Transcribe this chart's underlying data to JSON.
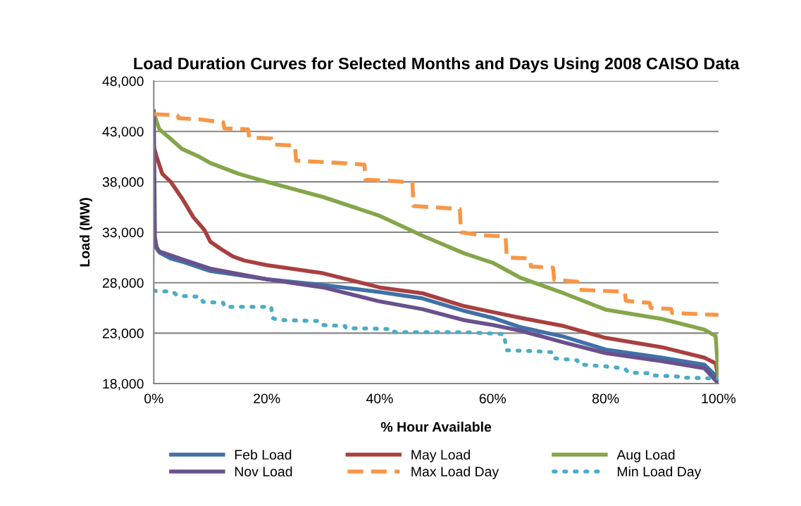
{
  "chart_data": {
    "type": "line",
    "title": "Load Duration Curves for Selected Months and Days Using 2008 CAISO Data",
    "xlabel": "% Hour Available",
    "ylabel": "Load (MW)",
    "xlim": [
      0,
      100
    ],
    "ylim": [
      18000,
      48000
    ],
    "xticks": [
      {
        "value": 0,
        "label": "0%"
      },
      {
        "value": 20,
        "label": "20%"
      },
      {
        "value": 40,
        "label": "40%"
      },
      {
        "value": 60,
        "label": "60%"
      },
      {
        "value": 80,
        "label": "80%"
      },
      {
        "value": 100,
        "label": "100%"
      }
    ],
    "yticks": [
      {
        "value": 18000,
        "label": "18,000"
      },
      {
        "value": 23000,
        "label": "23,000"
      },
      {
        "value": 28000,
        "label": "28,000"
      },
      {
        "value": 33000,
        "label": "33,000"
      },
      {
        "value": 38000,
        "label": "38,000"
      },
      {
        "value": 43000,
        "label": "43,000"
      },
      {
        "value": 48000,
        "label": "48,000"
      }
    ],
    "grid": "y",
    "legend": "bottom",
    "marker": "none",
    "series": [
      {
        "name": "Feb Load",
        "color": "#4070a8",
        "line_style": "solid",
        "x": [
          0,
          1,
          3,
          5,
          10,
          20,
          30,
          40,
          47.6,
          55,
          60,
          65,
          72.6,
          80,
          90,
          97.5,
          100
        ],
        "values": [
          31800,
          31000,
          30400,
          30090,
          29160,
          28350,
          27770,
          27070,
          26440,
          25200,
          24510,
          23580,
          22650,
          21370,
          20560,
          19860,
          18500
        ]
      },
      {
        "name": "May Load",
        "color": "#a84040",
        "line_style": "solid",
        "x": [
          0,
          0.5,
          1.5,
          3,
          5,
          7,
          9,
          10,
          12,
          14,
          16,
          20,
          30,
          40,
          47.6,
          55,
          60,
          65,
          72.6,
          80,
          90,
          97.5,
          99.5,
          100
        ],
        "values": [
          41500,
          40500,
          38800,
          38000,
          36370,
          34500,
          33200,
          32070,
          31300,
          30600,
          30200,
          29740,
          28930,
          27530,
          26950,
          25670,
          25090,
          24510,
          23700,
          22530,
          21600,
          20560,
          20000,
          18500
        ]
      },
      {
        "name": "Aug Load",
        "color": "#84a64a",
        "line_style": "solid",
        "x": [
          0,
          0.5,
          1,
          2.5,
          5,
          8,
          10,
          15,
          20,
          30,
          40,
          47.6,
          55,
          60,
          65,
          72.6,
          80,
          90,
          97.5,
          99.5,
          100
        ],
        "values": [
          44800,
          44000,
          43200,
          42500,
          41260,
          40500,
          39860,
          38800,
          38000,
          36490,
          34630,
          32650,
          30900,
          29980,
          28470,
          26950,
          25330,
          24400,
          23350,
          22700,
          18500
        ]
      },
      {
        "name": "Nov Load",
        "color": "#6a508c",
        "line_style": "solid",
        "x": [
          0,
          0.2,
          0.5,
          1,
          3,
          5,
          10,
          20,
          30,
          40,
          47.6,
          55,
          60,
          65,
          72.6,
          80,
          90,
          97.5,
          100
        ],
        "values": [
          45000,
          32500,
          31500,
          31100,
          30700,
          30330,
          29400,
          28350,
          27530,
          26140,
          25370,
          24280,
          23810,
          23230,
          22070,
          21020,
          20210,
          19510,
          18000
        ]
      },
      {
        "name": "Max Load Day",
        "color": "#f79646",
        "line_style": "dashed",
        "x": [
          0,
          4.2,
          4.4,
          8,
          12.3,
          12.5,
          16.7,
          16.9,
          20.8,
          21,
          25,
          25.2,
          32,
          37.3,
          37.5,
          42,
          45.8,
          46,
          54.2,
          54.4,
          58,
          62.3,
          62.5,
          66.6,
          66.8,
          70.7,
          70.9,
          75,
          75.2,
          83.4,
          83.6,
          87.8,
          88,
          91.6,
          91.8,
          100
        ],
        "values": [
          44700,
          44600,
          44300,
          44200,
          43900,
          43300,
          43200,
          42400,
          42300,
          41700,
          41600,
          40100,
          39900,
          39700,
          38200,
          38100,
          37900,
          35600,
          35300,
          33000,
          32700,
          32600,
          30500,
          30400,
          29600,
          29500,
          28300,
          28100,
          27300,
          27100,
          26200,
          26000,
          25500,
          25400,
          25000,
          24800
        ]
      },
      {
        "name": "Min Load Day",
        "color": "#4bacc6",
        "line_style": "dotted",
        "x": [
          0,
          3.4,
          4.2,
          8.3,
          8.7,
          12.3,
          12.5,
          20.8,
          21,
          22,
          29.5,
          30,
          33.9,
          34,
          42.4,
          42.6,
          55,
          62,
          62.5,
          68,
          70.7,
          71,
          75,
          75.3,
          80,
          83.4,
          84,
          88.5,
          88.7,
          92.8,
          93,
          100
        ],
        "values": [
          27200,
          27100,
          26700,
          26600,
          26100,
          26000,
          25600,
          25600,
          24500,
          24300,
          24200,
          23800,
          23700,
          23500,
          23400,
          23100,
          23100,
          22900,
          21300,
          21200,
          21100,
          20500,
          20300,
          19900,
          19700,
          19500,
          19100,
          19000,
          18800,
          18700,
          18600,
          18500
        ]
      }
    ]
  }
}
